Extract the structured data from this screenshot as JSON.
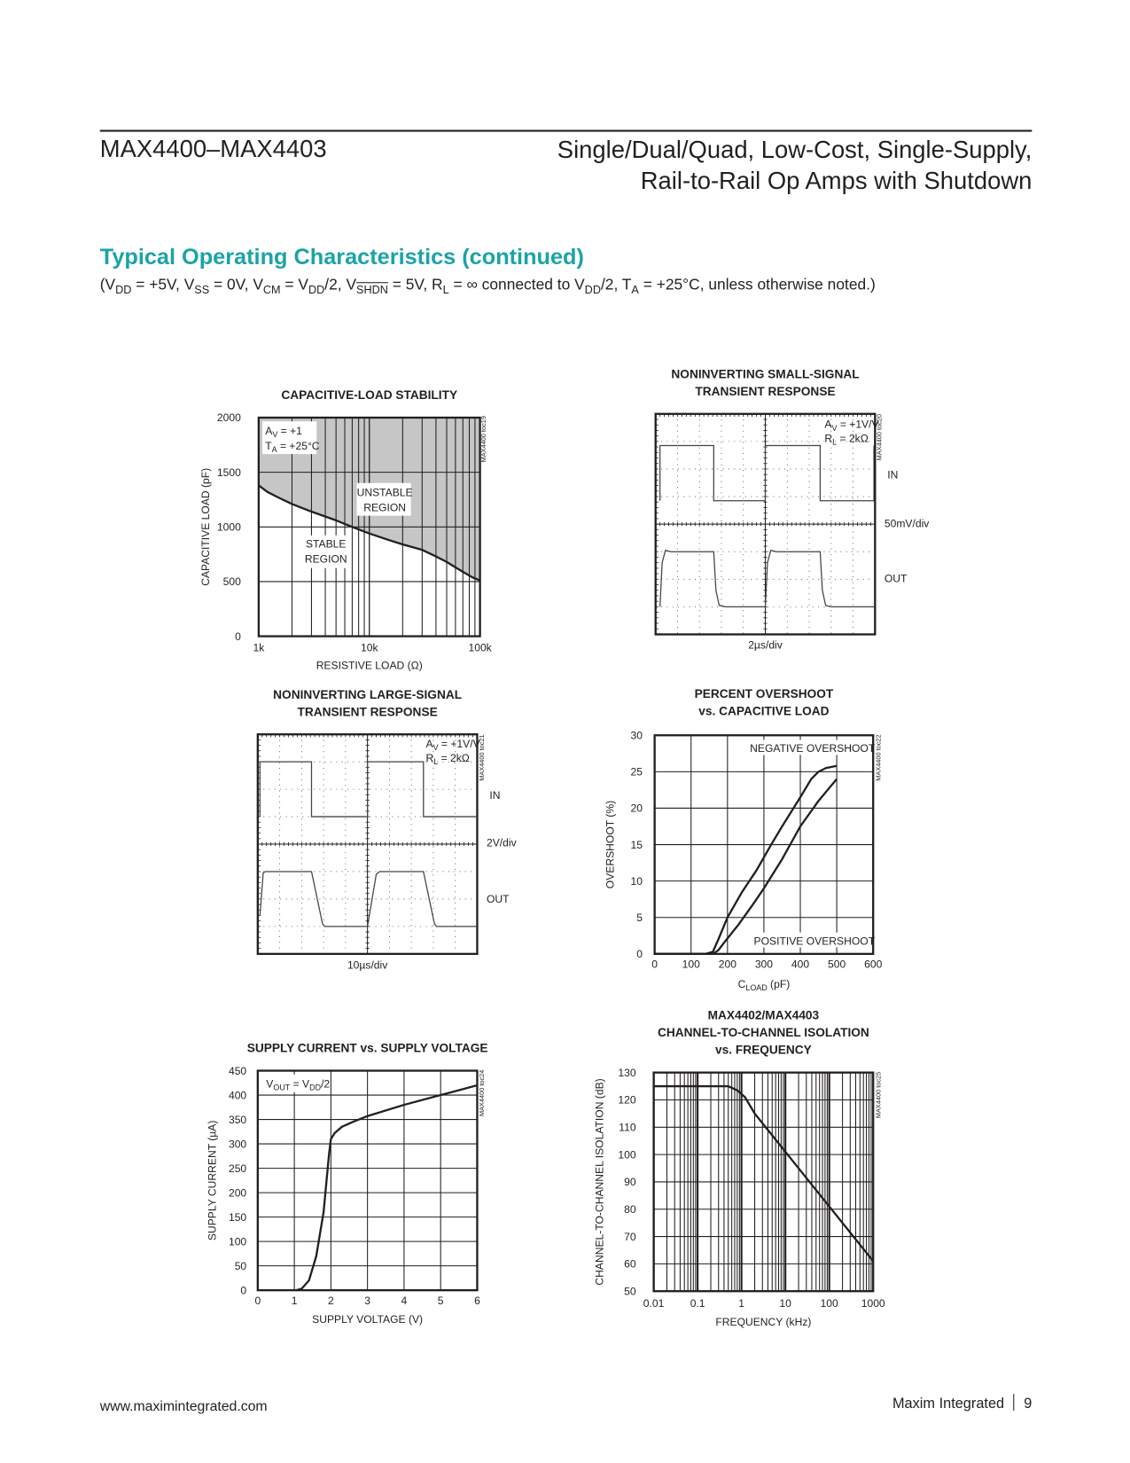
{
  "header": {
    "doc_id": "MAX4400–MAX4403",
    "title_line1": "Single/Dual/Quad, Low-Cost, Single-Supply,",
    "title_line2": "Rail-to-Rail Op Amps with Shutdown"
  },
  "section": {
    "title": "Typical Operating Characteristics (continued)",
    "conditions": {
      "p1": "(V",
      "s1": "DD",
      "p2": " = +5V, V",
      "s2": "SS",
      "p3": " = 0V, V",
      "s3": "CM",
      "p4": " = V",
      "s4": "DD",
      "p5": "/2, V",
      "s5": "SHDN",
      "p6": " = 5V, R",
      "s6": "L",
      "p7": " = ∞ connected to V",
      "s7": "DD",
      "p8": "/2, T",
      "s8": "A",
      "p9": " = +25°C, unless otherwise noted.)"
    }
  },
  "footer": {
    "url": "www.maximintegrated.com",
    "company": "Maxim Integrated",
    "page": "9"
  },
  "colors": {
    "accent": "#1aa3a8",
    "shade": "#c6c6c6",
    "ink": "#231f20"
  },
  "chart_data": [
    {
      "id": "c1",
      "type": "line",
      "title": [
        "CAPACITIVE-LOAD STABILITY"
      ],
      "xlabel": "RESISTIVE LOAD (Ω)",
      "ylabel": "CAPACITIVE LOAD (pF)",
      "xscale": "log",
      "xlim": [
        1000,
        100000
      ],
      "ylim": [
        0,
        2000
      ],
      "xticks": [
        {
          "v": 1000,
          "t": "1k"
        },
        {
          "v": 10000,
          "t": "10k"
        },
        {
          "v": 100000,
          "t": "100k"
        }
      ],
      "yticks": [
        {
          "v": 0,
          "t": "0"
        },
        {
          "v": 500,
          "t": "500"
        },
        {
          "v": 1000,
          "t": "1000"
        },
        {
          "v": 1500,
          "t": "1500"
        },
        {
          "v": 2000,
          "t": "2000"
        }
      ],
      "series": [
        {
          "name": "stability boundary",
          "x": [
            1000,
            1200,
            1500,
            2000,
            3000,
            5000,
            7000,
            10000,
            15000,
            20000,
            30000,
            40000,
            50000,
            60000,
            70000,
            85000,
            100000
          ],
          "y": [
            1380,
            1320,
            1270,
            1210,
            1140,
            1060,
            1000,
            940,
            880,
            840,
            790,
            730,
            680,
            630,
            590,
            540,
            510
          ]
        }
      ],
      "annotations": [
        "A|V| = +1",
        "T|A| = +25°C",
        "UNSTABLE",
        "REGION",
        "STABLE",
        "REGION"
      ],
      "watermark": "MAX4400 toc19",
      "grid": true
    },
    {
      "id": "c2",
      "type": "line",
      "title": [
        "NONINVERTING SMALL-SIGNAL",
        "TRANSIENT RESPONSE"
      ],
      "xlabel": "2µs/div",
      "scale_label": "50mV/div",
      "in_label": "IN",
      "out_label": "OUT",
      "annotations": [
        "A|V| = +1V/V",
        "R|L| = 2kΩ"
      ],
      "watermark": "MAX4400 toc20",
      "xdiv": 10,
      "ydiv": 8,
      "series": [
        {
          "name": "IN",
          "x": [
            0.2,
            0.2,
            2.65,
            2.65,
            5.0,
            5.0,
            7.5,
            7.5,
            9.95,
            9.95
          ],
          "y": [
            4.85,
            6.85,
            6.85,
            4.85,
            4.85,
            6.85,
            6.85,
            4.85,
            4.85,
            6.85
          ]
        },
        {
          "name": "OUT",
          "x": [
            0.2,
            0.3,
            0.45,
            0.7,
            2.65,
            2.75,
            2.9,
            3.2,
            5.0,
            5.1,
            5.25,
            5.5,
            7.5,
            7.6,
            7.75,
            8.0,
            9.95
          ],
          "y": [
            1,
            2.6,
            3.05,
            3.0,
            3.0,
            1.6,
            1.05,
            1.0,
            1.0,
            2.6,
            3.05,
            3.0,
            3.0,
            1.6,
            1.05,
            1.0,
            1.0
          ]
        }
      ]
    },
    {
      "id": "c3",
      "type": "line",
      "title": [
        "NONINVERTING LARGE-SIGNAL",
        "TRANSIENT RESPONSE"
      ],
      "xlabel": "10µs/div",
      "scale_label": "2V/div",
      "in_label": "IN",
      "out_label": "OUT",
      "annotations": [
        "A|V| = +1V/V",
        "R|L| = 2kΩ"
      ],
      "watermark": "MAX4400 toc21",
      "xdiv": 10,
      "ydiv": 8,
      "series": [
        {
          "name": "IN",
          "x": [
            0.1,
            0.1,
            2.45,
            2.45,
            5.0,
            5.0,
            7.55,
            7.55,
            9.95
          ],
          "y": [
            5,
            7,
            7,
            5,
            5,
            7,
            7,
            5,
            5
          ]
        },
        {
          "name": "OUT",
          "x": [
            0.1,
            0.25,
            0.35,
            2.45,
            2.95,
            3.05,
            5.0,
            5.4,
            5.55,
            7.55,
            8.05,
            8.15,
            9.95
          ],
          "y": [
            1.4,
            2.95,
            3.0,
            3.0,
            1.1,
            1.0,
            1.0,
            2.9,
            3.0,
            3.0,
            1.1,
            1.0,
            1.0
          ]
        }
      ]
    },
    {
      "id": "c4",
      "type": "line",
      "title": [
        "PERCENT OVERSHOOT",
        "vs. CAPACITIVE LOAD"
      ],
      "xlabel": "C|LOAD| (pF)",
      "ylabel": "OVERSHOOT (%)",
      "xlim": [
        0,
        600
      ],
      "ylim": [
        0,
        30
      ],
      "xticks": [
        {
          "v": 0,
          "t": "0"
        },
        {
          "v": 100,
          "t": "100"
        },
        {
          "v": 200,
          "t": "200"
        },
        {
          "v": 300,
          "t": "300"
        },
        {
          "v": 400,
          "t": "400"
        },
        {
          "v": 500,
          "t": "500"
        },
        {
          "v": 600,
          "t": "600"
        }
      ],
      "yticks": [
        {
          "v": 0,
          "t": "0"
        },
        {
          "v": 5,
          "t": "5"
        },
        {
          "v": 10,
          "t": "10"
        },
        {
          "v": 15,
          "t": "15"
        },
        {
          "v": 20,
          "t": "20"
        },
        {
          "v": 25,
          "t": "25"
        },
        {
          "v": 30,
          "t": "30"
        }
      ],
      "series": [
        {
          "name": "NEGATIVE OVERSHOOT",
          "x": [
            0,
            140,
            160,
            175,
            200,
            240,
            280,
            320,
            350,
            400,
            430,
            450,
            470,
            500
          ],
          "y": [
            0,
            0,
            0.3,
            2,
            5,
            8.5,
            11.5,
            15,
            17.5,
            21.5,
            24,
            25,
            25.5,
            25.8
          ]
        },
        {
          "name": "POSITIVE OVERSHOOT",
          "x": [
            0,
            160,
            175,
            190,
            230,
            270,
            300,
            350,
            400,
            450,
            480,
            500
          ],
          "y": [
            0,
            0,
            0.5,
            1.5,
            4,
            6.8,
            9,
            13,
            17.5,
            21,
            22.8,
            24
          ]
        }
      ],
      "watermark": "MAX4400 toc22",
      "grid": true
    },
    {
      "id": "c5",
      "type": "line",
      "title": [
        "SUPPLY CURRENT vs. SUPPLY VOLTAGE"
      ],
      "xlabel": "SUPPLY VOLTAGE (V)",
      "ylabel": "SUPPLY CURRENT (µA)",
      "xlim": [
        0,
        6
      ],
      "ylim": [
        0,
        450
      ],
      "xticks": [
        {
          "v": 0,
          "t": "0"
        },
        {
          "v": 1,
          "t": "1"
        },
        {
          "v": 2,
          "t": "2"
        },
        {
          "v": 3,
          "t": "3"
        },
        {
          "v": 4,
          "t": "4"
        },
        {
          "v": 5,
          "t": "5"
        },
        {
          "v": 6,
          "t": "6"
        }
      ],
      "yticks": [
        {
          "v": 0,
          "t": "0"
        },
        {
          "v": 50,
          "t": "50"
        },
        {
          "v": 100,
          "t": "100"
        },
        {
          "v": 150,
          "t": "150"
        },
        {
          "v": 200,
          "t": "200"
        },
        {
          "v": 250,
          "t": "250"
        },
        {
          "v": 300,
          "t": "300"
        },
        {
          "v": 350,
          "t": "350"
        },
        {
          "v": 400,
          "t": "400"
        },
        {
          "v": 450,
          "t": "450"
        }
      ],
      "series": [
        {
          "name": "supply current",
          "x": [
            1.05,
            1.2,
            1.4,
            1.6,
            1.8,
            1.95,
            2.0,
            2.1,
            2.3,
            2.6,
            3,
            4,
            5,
            6
          ],
          "y": [
            0,
            3,
            20,
            70,
            160,
            280,
            310,
            322,
            335,
            345,
            357,
            380,
            400,
            420
          ]
        }
      ],
      "annotations": [
        "V|OUT| = V|DD|/2"
      ],
      "watermark": "MAX4400 toc24",
      "grid": true
    },
    {
      "id": "c6",
      "type": "line",
      "title": [
        "MAX4402/MAX4403",
        "CHANNEL-TO-CHANNEL ISOLATION",
        "vs. FREQUENCY"
      ],
      "xlabel": "FREQUENCY (kHz)",
      "ylabel": "CHANNEL-TO-CHANNEL ISOLATION (dB)",
      "xscale": "log",
      "xlim": [
        0.01,
        1000
      ],
      "ylim": [
        50,
        130
      ],
      "xticks": [
        {
          "v": 0.01,
          "t": "0.01"
        },
        {
          "v": 0.1,
          "t": "0.1"
        },
        {
          "v": 1,
          "t": "1"
        },
        {
          "v": 10,
          "t": "10"
        },
        {
          "v": 100,
          "t": "100"
        },
        {
          "v": 1000,
          "t": "1000"
        }
      ],
      "yticks": [
        {
          "v": 50,
          "t": "50"
        },
        {
          "v": 60,
          "t": "60"
        },
        {
          "v": 70,
          "t": "70"
        },
        {
          "v": 80,
          "t": "80"
        },
        {
          "v": 90,
          "t": "90"
        },
        {
          "v": 100,
          "t": "100"
        },
        {
          "v": 110,
          "t": "110"
        },
        {
          "v": 120,
          "t": "120"
        },
        {
          "v": 130,
          "t": "130"
        }
      ],
      "series": [
        {
          "name": "isolation",
          "x": [
            0.01,
            0.5,
            0.8,
            1.2,
            2,
            10,
            100,
            1000
          ],
          "y": [
            125,
            125,
            123.5,
            121,
            115,
            101,
            81,
            61
          ]
        }
      ],
      "watermark": "MAX4400 toc25",
      "grid": true
    }
  ]
}
